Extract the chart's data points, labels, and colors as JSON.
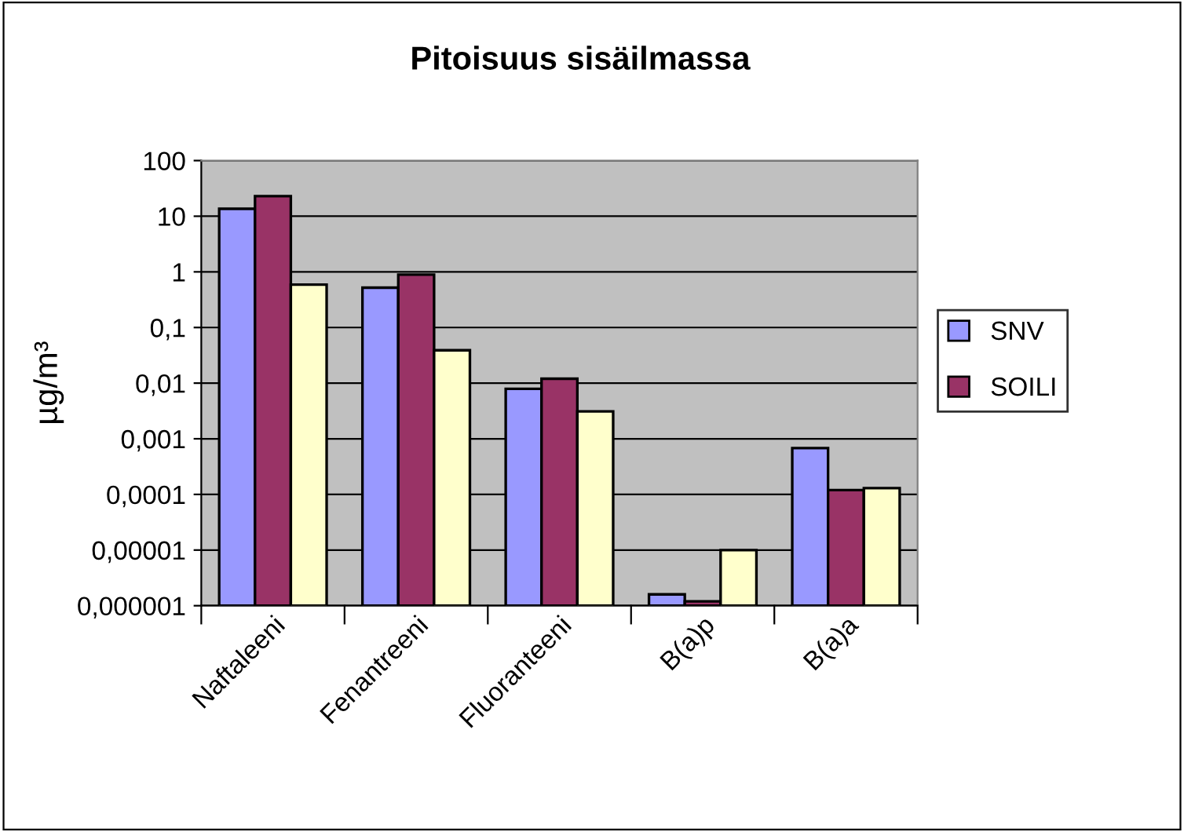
{
  "chart_data": {
    "type": "bar",
    "title": "Pitoisuus sisäilmassa",
    "ylabel": "µg/m³",
    "categories": [
      "Naftaleeni",
      "Fenantreeni",
      "Fluoranteeni",
      "B(a)p",
      "B(a)a"
    ],
    "series": [
      {
        "name": "SNV",
        "color": "#9999ff",
        "values": [
          13.6,
          0.52,
          0.0079,
          1.6e-06,
          0.00068
        ]
      },
      {
        "name": "SOILI",
        "color": "#993366",
        "values": [
          23,
          0.89,
          0.012,
          1.2e-06,
          0.00012
        ]
      },
      {
        "color": "#ffffcc",
        "values": [
          0.59,
          0.039,
          0.0031,
          1e-05,
          0.00013
        ]
      }
    ],
    "log": "y",
    "ylim": [
      1e-06,
      100
    ],
    "yticks": [
      {
        "value": 1e-06,
        "label": "0,000001"
      },
      {
        "value": 1e-05,
        "label": "0,00001"
      },
      {
        "value": 0.0001,
        "label": "0,0001"
      },
      {
        "value": 0.001,
        "label": "0,001"
      },
      {
        "value": 0.01,
        "label": "0,01"
      },
      {
        "value": 0.1,
        "label": "0,1"
      },
      1,
      10,
      100
    ],
    "grid": "y",
    "legend": "right"
  }
}
